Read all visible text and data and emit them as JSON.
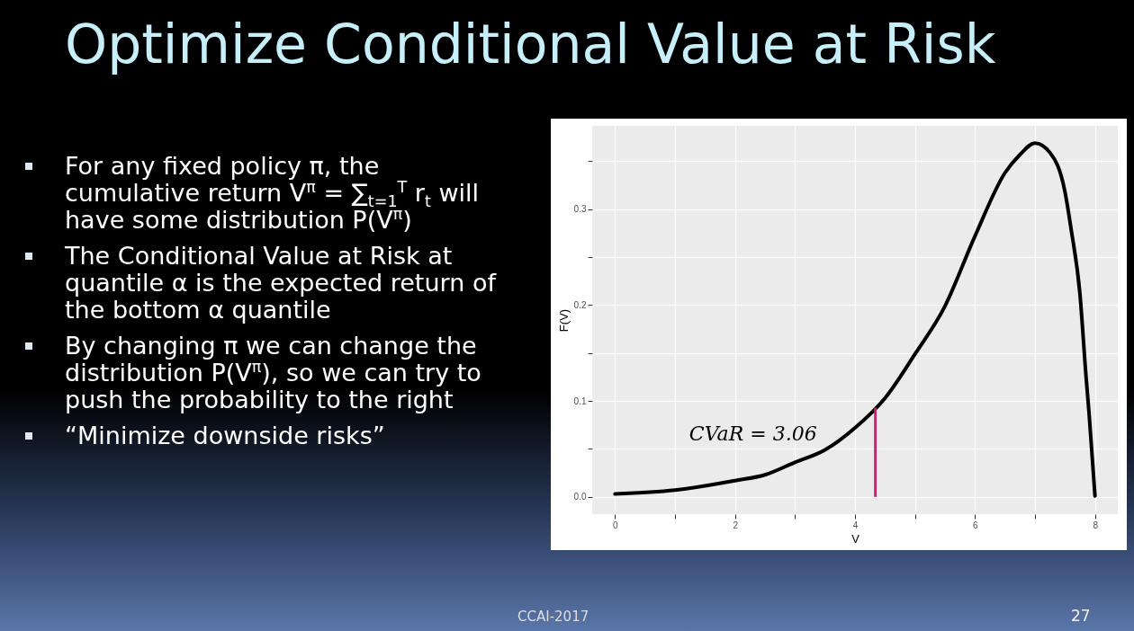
{
  "chart_data": {
    "type": "line",
    "title": "Optimize Conditional Value at Risk",
    "xlabel": "V",
    "ylabel": "F(V)",
    "x": [
      0,
      1,
      2,
      2.5,
      3,
      3.5,
      4,
      4.5,
      5,
      5.5,
      6,
      6.5,
      6.75,
      7,
      7.25,
      7.5,
      7.6,
      7.75,
      7.85,
      7.9,
      8
    ],
    "series": [
      {
        "color": "#000000",
        "values": [
          0.003,
          0.007,
          0.017,
          0.023,
          0.036,
          0.049,
          0.072,
          0.103,
          0.149,
          0.199,
          0.272,
          0.338,
          0.357,
          0.369,
          0.359,
          0.318,
          0.28,
          0.211,
          0.126,
          0.088,
          0.001
        ]
      }
    ],
    "xlim": [
      -0.38,
      8.38
    ],
    "ylim": [
      -0.018,
      0.387
    ],
    "xticks": [
      0,
      {
        "value": 1,
        "label": null
      },
      2,
      {
        "value": 3,
        "label": null
      },
      4,
      {
        "value": 5,
        "label": null
      },
      6,
      {
        "value": 7,
        "label": null
      },
      8
    ],
    "yticks": [
      {
        "value": 0,
        "label": "0.0"
      },
      {
        "value": 0.05,
        "label": null
      },
      0.1,
      {
        "value": 0.15,
        "label": null
      },
      0.2,
      {
        "value": 0.25,
        "label": null
      },
      0.3,
      {
        "value": 0.35,
        "label": null
      }
    ],
    "grid": true,
    "marker": "none",
    "line_style": "solid",
    "ref_lines": [
      {
        "axis": "x",
        "value": 4.34,
        "label": null,
        "color": "#d6197a"
      }
    ],
    "annotations": [
      "For any fixed policy π, the cumulative return V$^{π}$ = ∑$_{t=1}$$^{T}$ r$_{t}$ will have some distribution P(V$^{π}$)",
      "The Conditional Value at Risk at quantile α is the expected return of the bottom α quantile",
      "By changing π we can change the distribution P(V$^{π}$), so we can try to push the probability to the right",
      "“Minimize downside risks”",
      {
        "text": "CVaR = 3.06",
        "x": 4.34,
        "y": 0.065
      },
      "CCAI-2017",
      "27"
    ]
  }
}
